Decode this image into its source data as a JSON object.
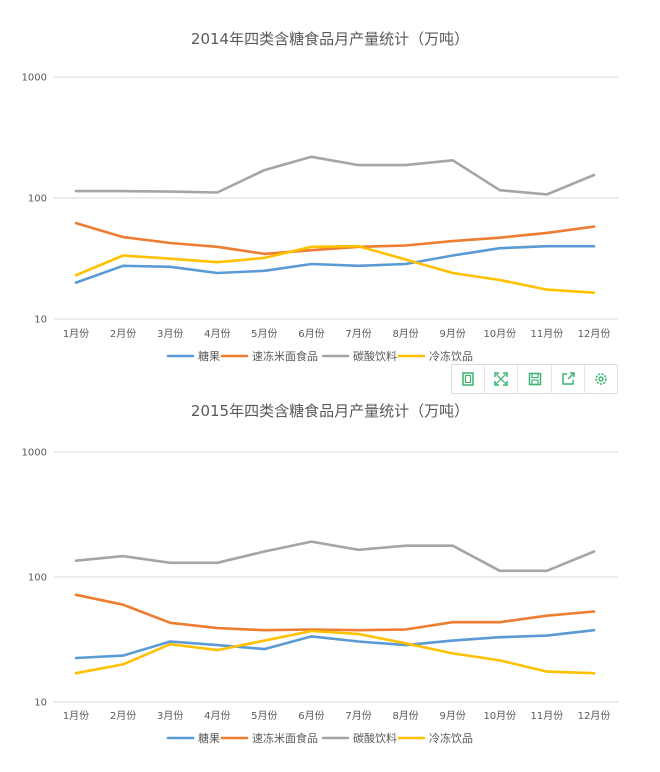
{
  "chart_data": [
    {
      "type": "line",
      "title": "2014年四类含糖食品月产量统计（万吨）",
      "yscale": "log",
      "ylim": [
        10,
        1000
      ],
      "yticks": [
        "1000",
        "100",
        "10"
      ],
      "categories": [
        "1月份",
        "2月份",
        "3月份",
        "4月份",
        "5月份",
        "6月份",
        "7月份",
        "8月份",
        "9月份",
        "10月份",
        "11月份",
        "12月份"
      ],
      "legend_position": "bottom",
      "grid": true,
      "series": [
        {
          "name": "糖果",
          "color": "#5b9bd5",
          "values": [
            20,
            27.5,
            27,
            24,
            25,
            28.5,
            27.5,
            28.5,
            33.5,
            38.5,
            40,
            40
          ]
        },
        {
          "name": "速冻米面食品",
          "color": "#ed7d31",
          "values": [
            62,
            47.5,
            42.5,
            39.5,
            34.5,
            37,
            39.5,
            40.5,
            44,
            47,
            51.5,
            58
          ]
        },
        {
          "name": "碳酸饮料",
          "color": "#a5a5a5",
          "values": [
            114,
            114,
            113,
            111,
            170,
            219,
            187,
            187,
            205,
            116,
            107,
            155
          ]
        },
        {
          "name": "冷冻饮品",
          "color": "#ffc000",
          "values": [
            23,
            33.5,
            31.5,
            29.5,
            32,
            39.5,
            40,
            31,
            24,
            21,
            17.5,
            16.5
          ]
        }
      ]
    },
    {
      "type": "line",
      "title": "2015年四类含糖食品月产量统计（万吨）",
      "yscale": "log",
      "ylim": [
        10,
        1000
      ],
      "yticks": [
        "1000",
        "100",
        "10"
      ],
      "categories": [
        "1月份",
        "2月份",
        "3月份",
        "4月份",
        "5月份",
        "6月份",
        "7月份",
        "8月份",
        "9月份",
        "10月份",
        "11月份",
        "12月份"
      ],
      "legend_position": "bottom",
      "grid": true,
      "series": [
        {
          "name": "糖果",
          "color": "#5b9bd5",
          "values": [
            22.5,
            23.5,
            30.5,
            28.5,
            26.5,
            33.5,
            30.5,
            28.5,
            31,
            33,
            34,
            37.5
          ]
        },
        {
          "name": "速冻米面食品",
          "color": "#ed7d31",
          "values": [
            72,
            60,
            43,
            39,
            37.5,
            38,
            37.5,
            38,
            43.5,
            43.5,
            49,
            53
          ]
        },
        {
          "name": "碳酸饮料",
          "color": "#a5a5a5",
          "values": [
            135,
            147,
            130,
            130,
            160,
            192,
            165,
            178,
            178,
            112,
            112,
            160
          ]
        },
        {
          "name": "冷冻饮品",
          "color": "#ffc000",
          "values": [
            17,
            20,
            29,
            26,
            31,
            37,
            35,
            29.5,
            24.5,
            21.5,
            17.5,
            17
          ]
        }
      ]
    }
  ],
  "toolbar": {
    "icons": [
      "copy-icon",
      "fullscreen-icon",
      "save-icon",
      "share-icon",
      "settings-icon"
    ]
  }
}
